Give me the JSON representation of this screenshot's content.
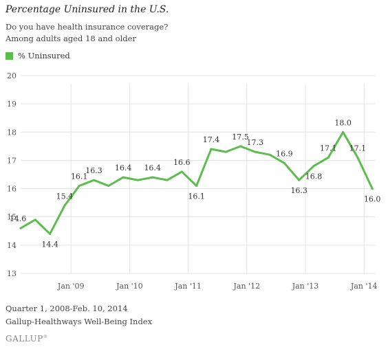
{
  "title": "Percentage Uninsured in the U.S.",
  "subtitle_1": "Do you have health insurance coverage?",
  "subtitle_2": "Among adults aged 18 and older",
  "legend_label": "% Uninsured",
  "footer_1": "Quarter 1, 2008-Feb. 10, 2014",
  "footer_2": "Gallup-Healthways Well-Being Index",
  "logo": "GALLUP",
  "chart_data": {
    "type": "line",
    "series": [
      {
        "name": "% Uninsured",
        "color": "#5bbd4c",
        "values": [
          14.6,
          14.9,
          14.4,
          15.4,
          16.1,
          16.3,
          16.1,
          16.4,
          16.3,
          16.4,
          16.3,
          16.6,
          16.1,
          17.4,
          17.3,
          17.5,
          17.3,
          17.2,
          16.9,
          16.3,
          16.8,
          17.1,
          18.0,
          17.1,
          16.0
        ]
      }
    ],
    "data_labels": [
      {
        "index": 0,
        "text": "14.6",
        "pos": "left"
      },
      {
        "index": 2,
        "text": "14.4",
        "pos": "below"
      },
      {
        "index": 3,
        "text": "15.4",
        "pos": "above"
      },
      {
        "index": 4,
        "text": "16.1",
        "pos": "above"
      },
      {
        "index": 5,
        "text": "16.3",
        "pos": "above"
      },
      {
        "index": 7,
        "text": "16.4",
        "pos": "above"
      },
      {
        "index": 9,
        "text": "16.4",
        "pos": "above"
      },
      {
        "index": 11,
        "text": "16.6",
        "pos": "above"
      },
      {
        "index": 12,
        "text": "16.1",
        "pos": "below"
      },
      {
        "index": 13,
        "text": "17.4",
        "pos": "above"
      },
      {
        "index": 15,
        "text": "17.5",
        "pos": "above"
      },
      {
        "index": 16,
        "text": "17.3",
        "pos": "above"
      },
      {
        "index": 18,
        "text": "16.9",
        "pos": "above"
      },
      {
        "index": 19,
        "text": "16.3",
        "pos": "below"
      },
      {
        "index": 20,
        "text": "16.8",
        "pos": "below"
      },
      {
        "index": 21,
        "text": "17.1",
        "pos": "above"
      },
      {
        "index": 22,
        "text": "18.0",
        "pos": "above"
      },
      {
        "index": 23,
        "text": "17.1",
        "pos": "above"
      },
      {
        "index": 24,
        "text": "16.0",
        "pos": "below"
      }
    ],
    "x_ticks": [
      {
        "index": 4,
        "label": "Jan '09"
      },
      {
        "index": 8,
        "label": "Jan '10"
      },
      {
        "index": 12,
        "label": "Jan '11"
      },
      {
        "index": 16,
        "label": "Jan '12"
      },
      {
        "index": 20,
        "label": "Jan '13"
      },
      {
        "index": 24,
        "label": "Jan '14"
      }
    ],
    "y_ticks": [
      13,
      14,
      15,
      16,
      17,
      18,
      19,
      20
    ],
    "ylim": [
      13,
      20
    ],
    "grid": "horizontal",
    "legend": "top-left"
  }
}
